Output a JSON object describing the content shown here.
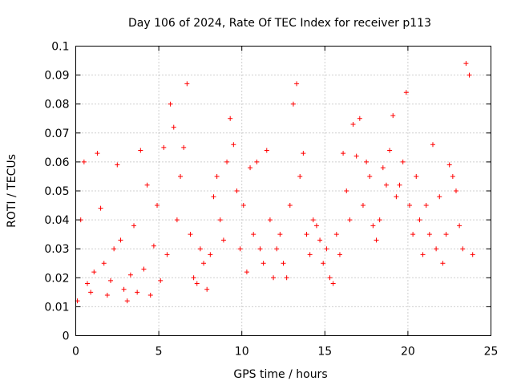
{
  "chart_data": {
    "type": "scatter",
    "title": "Day 106 of 2024, Rate Of TEC Index for receiver p113",
    "xlabel": "GPS time / hours",
    "ylabel": "ROTI / TECUs",
    "xlim": [
      0,
      25
    ],
    "ylim": [
      0,
      0.1
    ],
    "xticks": [
      "0",
      "5",
      "10",
      "15",
      "20",
      "25"
    ],
    "yticks": [
      "0",
      "0.01",
      "0.02",
      "0.03",
      "0.04",
      "0.05",
      "0.06",
      "0.07",
      "0.08",
      "0.09",
      "0.1"
    ],
    "grid": true,
    "marker": "+",
    "color": "#ff0000",
    "series": [
      {
        "x": [
          0.1,
          0.3,
          0.5,
          0.7,
          0.9,
          1.1,
          1.3,
          1.5,
          1.7,
          1.9,
          2.1,
          2.3,
          2.5,
          2.7,
          2.9,
          3.1,
          3.3,
          3.5,
          3.7,
          3.9,
          4.1,
          4.3,
          4.5,
          4.7,
          4.9,
          5.1,
          5.3,
          5.5,
          5.7,
          5.9,
          6.1,
          6.3,
          6.5,
          6.7,
          6.9,
          7.1,
          7.3,
          7.5,
          7.7,
          7.9,
          8.1,
          8.3,
          8.5,
          8.7,
          8.9,
          9.1,
          9.3,
          9.5,
          9.7,
          9.9,
          10.1,
          10.3,
          10.5,
          10.7,
          10.9,
          11.1,
          11.3,
          11.5,
          11.7,
          11.9,
          12.1,
          12.3,
          12.5,
          12.7,
          12.9,
          13.1,
          13.3,
          13.5,
          13.7,
          13.9,
          14.1,
          14.3,
          14.5,
          14.7,
          14.9,
          15.1,
          15.3,
          15.5,
          15.7,
          15.9,
          16.1,
          16.3,
          16.5,
          16.7,
          16.9,
          17.1,
          17.3,
          17.5,
          17.7,
          17.9,
          18.1,
          18.3,
          18.5,
          18.7,
          18.9,
          19.1,
          19.3,
          19.5,
          19.7,
          19.9,
          20.1,
          20.3,
          20.5,
          20.7,
          20.9,
          21.1,
          21.3,
          21.5,
          21.7,
          21.9,
          22.1,
          22.3,
          22.5,
          22.7,
          22.9,
          23.1,
          23.3,
          23.5,
          23.7,
          23.9
        ],
        "y": [
          0.012,
          0.04,
          0.06,
          0.018,
          0.015,
          0.022,
          0.063,
          0.044,
          0.025,
          0.014,
          0.019,
          0.03,
          0.059,
          0.033,
          0.016,
          0.012,
          0.021,
          0.038,
          0.015,
          0.064,
          0.023,
          0.052,
          0.014,
          0.031,
          0.045,
          0.019,
          0.065,
          0.028,
          0.08,
          0.072,
          0.04,
          0.055,
          0.065,
          0.087,
          0.035,
          0.02,
          0.018,
          0.03,
          0.025,
          0.016,
          0.028,
          0.048,
          0.055,
          0.04,
          0.033,
          0.06,
          0.075,
          0.066,
          0.05,
          0.03,
          0.045,
          0.022,
          0.058,
          0.035,
          0.06,
          0.03,
          0.025,
          0.064,
          0.04,
          0.02,
          0.03,
          0.035,
          0.025,
          0.02,
          0.045,
          0.08,
          0.087,
          0.055,
          0.063,
          0.035,
          0.028,
          0.04,
          0.038,
          0.033,
          0.025,
          0.03,
          0.02,
          0.018,
          0.035,
          0.028,
          0.063,
          0.05,
          0.04,
          0.073,
          0.062,
          0.075,
          0.045,
          0.06,
          0.055,
          0.038,
          0.033,
          0.04,
          0.058,
          0.052,
          0.064,
          0.076,
          0.048,
          0.052,
          0.06,
          0.084,
          0.045,
          0.035,
          0.055,
          0.04,
          0.028,
          0.045,
          0.035,
          0.066,
          0.03,
          0.048,
          0.025,
          0.035,
          0.059,
          0.055,
          0.05,
          0.038,
          0.03,
          0.094,
          0.09,
          0.028
        ]
      }
    ]
  }
}
